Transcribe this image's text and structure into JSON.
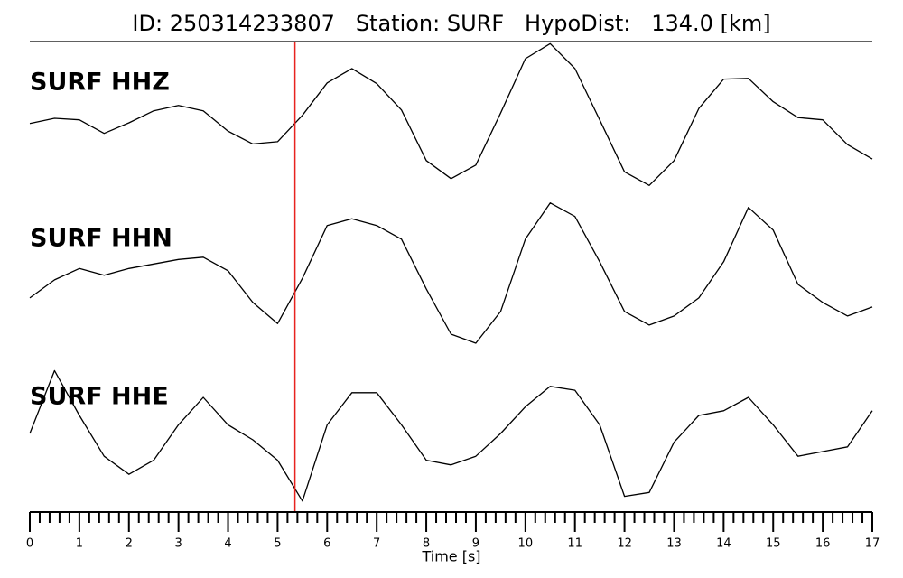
{
  "chart_data": {
    "type": "line",
    "title": "ID: 250314233807   Station: SURF   HypoDist:   134.0 [km]",
    "xlabel": "Time [s]",
    "xlim": [
      0,
      17
    ],
    "xticks": [
      0,
      1,
      2,
      3,
      4,
      5,
      6,
      7,
      8,
      9,
      10,
      11,
      12,
      13,
      14,
      15,
      16,
      17
    ],
    "xminorticks": [
      0.2,
      0.4,
      0.6,
      0.8,
      1.2,
      1.4,
      1.6,
      1.8,
      2.2,
      2.4,
      2.6,
      2.8,
      3.2,
      3.4,
      3.6,
      3.8,
      4.2,
      4.4,
      4.6,
      4.8,
      5.2,
      5.4,
      5.6,
      5.8,
      6.2,
      6.4,
      6.6,
      6.8,
      7.2,
      7.4,
      7.6,
      7.8,
      8.2,
      8.4,
      8.6,
      8.8,
      9.2,
      9.4,
      9.6,
      9.8,
      10.2,
      10.4,
      10.6,
      10.8,
      11.2,
      11.4,
      11.6,
      11.8,
      12.2,
      12.4,
      12.6,
      12.8,
      13.2,
      13.4,
      13.6,
      13.8,
      14.2,
      14.4,
      14.6,
      14.8,
      15.2,
      15.4,
      15.6,
      15.8,
      16.2,
      16.4,
      16.6,
      16.8
    ],
    "pick_time": 5.35,
    "pick_color": "#e8231f",
    "label_color": "#4e9a06",
    "x": [
      0,
      0.5,
      1,
      1.5,
      2,
      2.5,
      3,
      3.5,
      4,
      4.5,
      5,
      5.5,
      6,
      6.5,
      7,
      7.5,
      8,
      8.5,
      9,
      9.5,
      10,
      10.5,
      11,
      11.5,
      12,
      12.5,
      13,
      13.5,
      14,
      14.5,
      15,
      15.5,
      16,
      16.5,
      17
    ],
    "series": [
      {
        "name": "SURF HHZ",
        "color": "#000000",
        "ylim": [
          -1,
          1
        ],
        "values": [
          -0.1,
          -0.03,
          -0.05,
          -0.23,
          -0.09,
          0.07,
          0.14,
          0.07,
          -0.2,
          -0.37,
          -0.34,
          0.01,
          0.44,
          0.63,
          0.43,
          0.08,
          -0.59,
          -0.83,
          -0.65,
          0.04,
          0.76,
          0.96,
          0.63,
          -0.05,
          -0.74,
          -0.92,
          -0.59,
          0.1,
          0.49,
          0.5,
          0.19,
          -0.02,
          -0.05,
          -0.38,
          -0.57
        ]
      },
      {
        "name": "SURF HHN",
        "color": "#000000",
        "ylim": [
          -1,
          1
        ],
        "values": [
          -0.34,
          -0.1,
          0.05,
          -0.04,
          0.05,
          0.11,
          0.17,
          0.2,
          0.02,
          -0.4,
          -0.68,
          -0.08,
          0.62,
          0.71,
          0.62,
          0.44,
          -0.22,
          -0.82,
          -0.94,
          -0.52,
          0.44,
          0.92,
          0.74,
          0.14,
          -0.52,
          -0.7,
          -0.58,
          -0.34,
          0.14,
          0.86,
          0.56,
          -0.16,
          -0.4,
          -0.58,
          -0.46
        ]
      },
      {
        "name": "SURF HHE",
        "color": "#000000",
        "ylim": [
          -1,
          1
        ],
        "values": [
          0,
          0.8,
          0.23,
          -0.29,
          -0.52,
          -0.34,
          0.11,
          0.46,
          0.11,
          -0.08,
          -0.34,
          -0.86,
          0.11,
          0.52,
          0.52,
          0.11,
          -0.34,
          -0.4,
          -0.29,
          0,
          0.34,
          0.6,
          0.55,
          0.11,
          -0.8,
          -0.75,
          -0.11,
          0.23,
          0.29,
          0.46,
          0.11,
          -0.29,
          -0.23,
          -0.17,
          0.29
        ]
      }
    ]
  }
}
